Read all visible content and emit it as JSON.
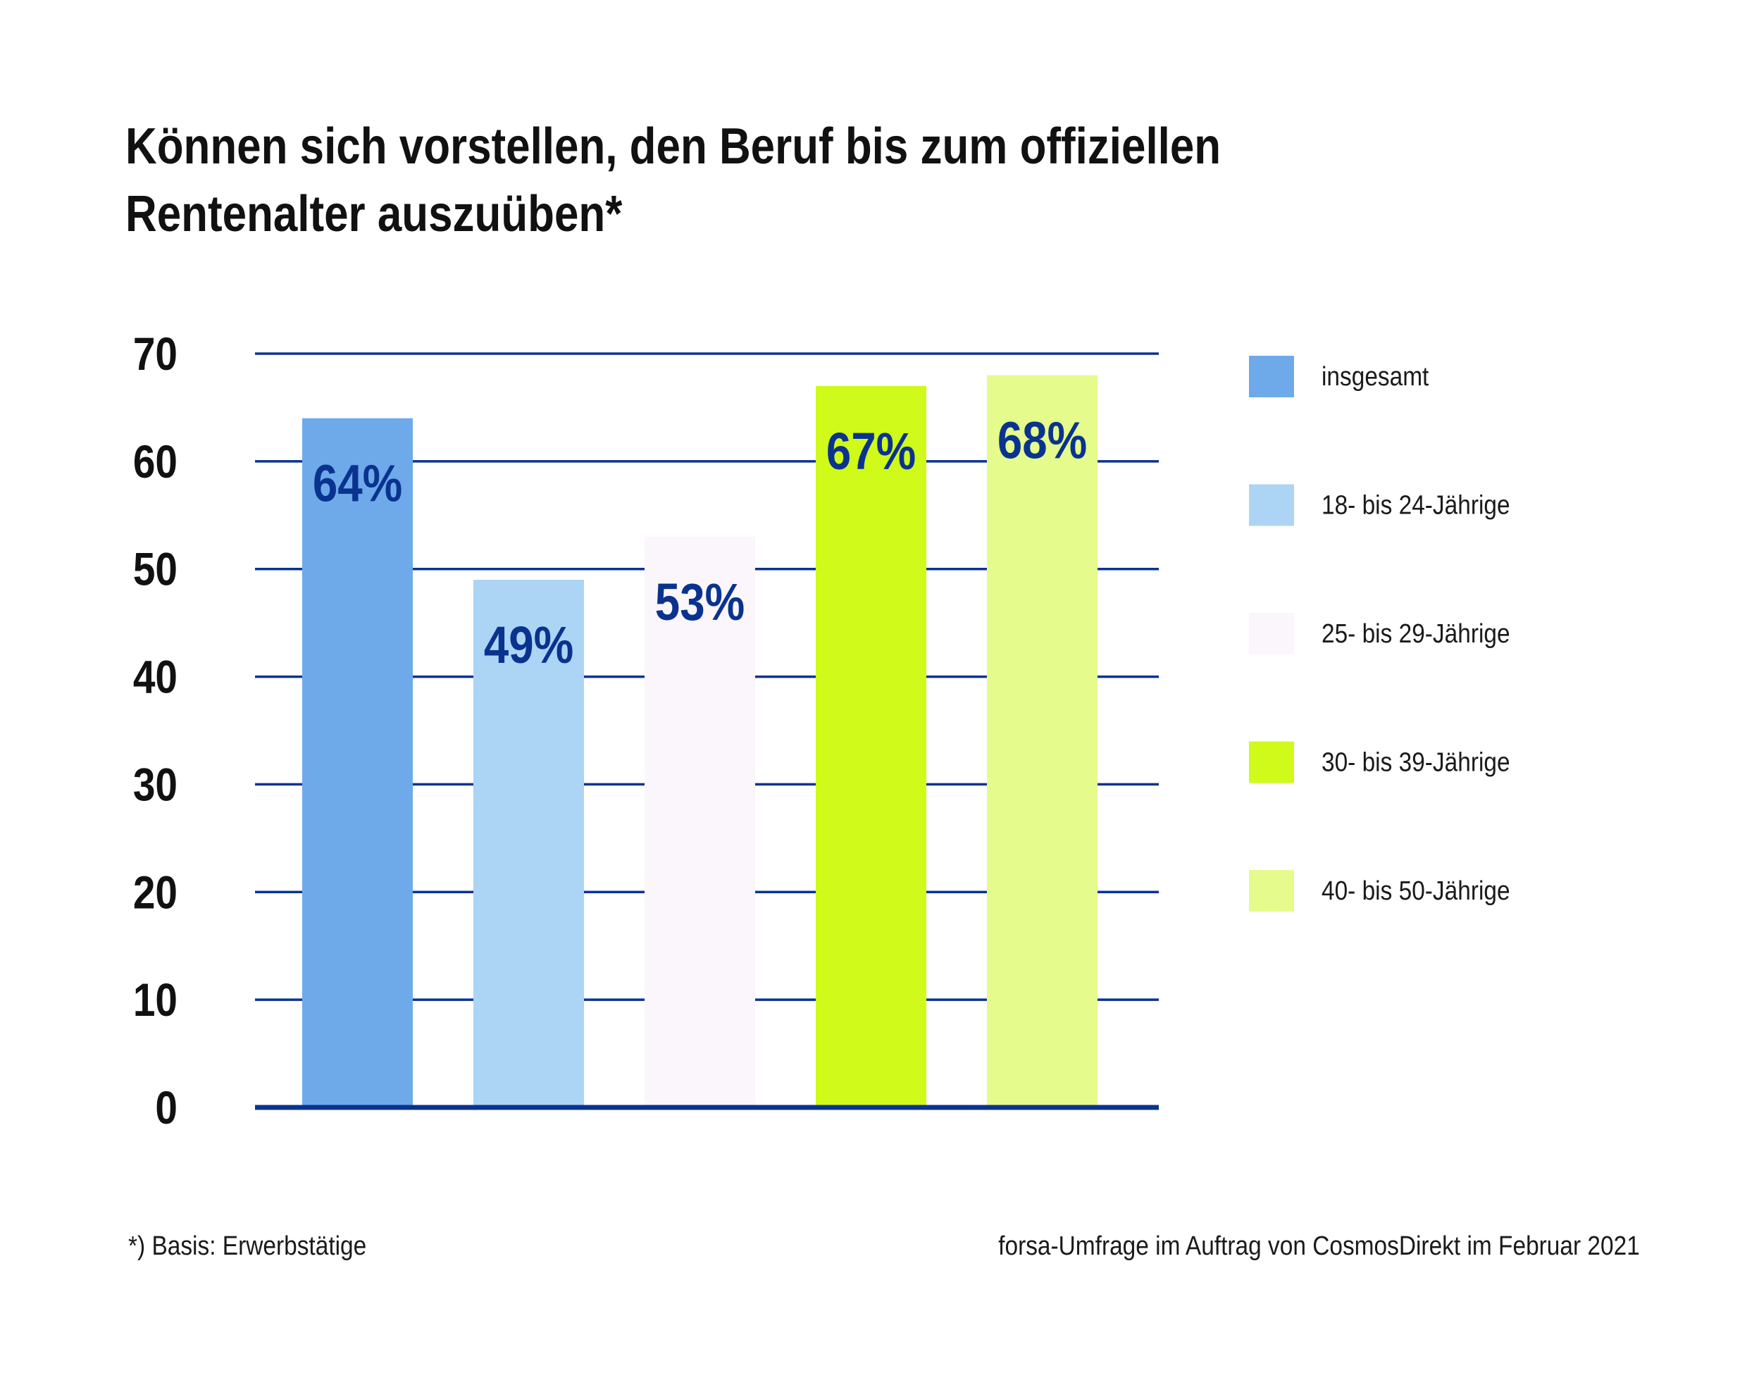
{
  "chart_data": {
    "type": "bar",
    "title_lines": [
      "Können sich vorstellen, den Beruf bis zum offiziellen",
      "Rentenalter auszuüben*"
    ],
    "ylim": [
      0,
      70
    ],
    "yticks": [
      0,
      10,
      20,
      30,
      40,
      50,
      60,
      70
    ],
    "ytick_labels": [
      "0",
      "10",
      "20",
      "30",
      "40",
      "50",
      "60",
      "70"
    ],
    "grid": true,
    "legend_position": "right",
    "categories": [
      "insgesamt",
      "18- bis 24-Jährige",
      "25- bis 29-Jährige",
      "30- bis 39-Jährige",
      "40- bis 50-Jährige"
    ],
    "values": [
      64,
      49,
      53,
      67,
      68
    ],
    "data_labels": [
      "64%",
      "49%",
      "53%",
      "67%",
      "68%"
    ],
    "colors": [
      "#6eaaea",
      "#acd4f5",
      "#fbf6fb",
      "#d0fa1a",
      "#e5fb8c"
    ]
  },
  "footnote": "*) Basis: Erwerbstätige",
  "source": "forsa-Umfrage im Auftrag von CosmosDirekt im Februar 2021",
  "style": {
    "grid_color": "#0a3390",
    "label_color": "#0a3390",
    "axis_text_color": "#111111"
  }
}
